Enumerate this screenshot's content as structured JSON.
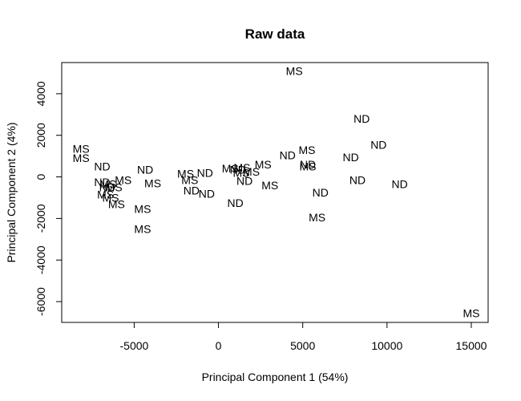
{
  "chart_data": {
    "type": "scatter",
    "title": "Raw data",
    "xlabel": "Principal Component 1 (54%)",
    "ylabel": "Principal Component 2 (4%)",
    "xlim": [
      -9300,
      16000
    ],
    "ylim": [
      -7000,
      5500
    ],
    "xticks": [
      -5000,
      0,
      5000,
      10000,
      15000
    ],
    "yticks": [
      -6000,
      -4000,
      -2000,
      0,
      2000,
      4000
    ],
    "xtick_labels": [
      "-5000",
      "0",
      "5000",
      "10000",
      "15000"
    ],
    "ytick_labels": [
      "-6000",
      "-4000",
      "-2000",
      "0",
      "2000",
      "4000"
    ],
    "grid": false,
    "legend": "none",
    "points": [
      {
        "x": 4500,
        "y": 5100,
        "label": "MS"
      },
      {
        "x": 8500,
        "y": 2800,
        "label": "ND"
      },
      {
        "x": 9500,
        "y": 1550,
        "label": "ND"
      },
      {
        "x": -8150,
        "y": 1350,
        "label": "MS"
      },
      {
        "x": -8150,
        "y": 900,
        "label": "MS"
      },
      {
        "x": 4100,
        "y": 1050,
        "label": "ND"
      },
      {
        "x": 5250,
        "y": 1300,
        "label": "MS"
      },
      {
        "x": 7850,
        "y": 950,
        "label": "ND"
      },
      {
        "x": 5300,
        "y": 600,
        "label": "ND"
      },
      {
        "x": 5300,
        "y": 500,
        "label": "MS"
      },
      {
        "x": -6900,
        "y": 500,
        "label": "ND"
      },
      {
        "x": -4350,
        "y": 350,
        "label": "ND"
      },
      {
        "x": 2650,
        "y": 600,
        "label": "MS"
      },
      {
        "x": -5650,
        "y": -150,
        "label": "MS"
      },
      {
        "x": -6550,
        "y": -350,
        "label": "MS"
      },
      {
        "x": -6900,
        "y": -250,
        "label": "ND"
      },
      {
        "x": -6600,
        "y": -500,
        "label": "ND"
      },
      {
        "x": -6200,
        "y": -500,
        "label": "MS"
      },
      {
        "x": -6700,
        "y": -850,
        "label": "MS"
      },
      {
        "x": -6400,
        "y": -1000,
        "label": "MS"
      },
      {
        "x": -6050,
        "y": -1300,
        "label": "MS"
      },
      {
        "x": -3900,
        "y": -300,
        "label": "MS"
      },
      {
        "x": -1950,
        "y": 150,
        "label": "MS"
      },
      {
        "x": -1700,
        "y": -150,
        "label": "MS"
      },
      {
        "x": -1600,
        "y": -650,
        "label": "ND"
      },
      {
        "x": -800,
        "y": 200,
        "label": "ND"
      },
      {
        "x": -700,
        "y": -800,
        "label": "ND"
      },
      {
        "x": 700,
        "y": 400,
        "label": "MS"
      },
      {
        "x": 1150,
        "y": 350,
        "label": "ND"
      },
      {
        "x": 1400,
        "y": 450,
        "label": "MS"
      },
      {
        "x": 1350,
        "y": 200,
        "label": "MS"
      },
      {
        "x": 1950,
        "y": 250,
        "label": "MS"
      },
      {
        "x": 1550,
        "y": -200,
        "label": "ND"
      },
      {
        "x": 1000,
        "y": -1250,
        "label": "ND"
      },
      {
        "x": 3050,
        "y": -400,
        "label": "MS"
      },
      {
        "x": -4500,
        "y": -1550,
        "label": "MS"
      },
      {
        "x": -4500,
        "y": -2500,
        "label": "MS"
      },
      {
        "x": 6050,
        "y": -750,
        "label": "ND"
      },
      {
        "x": 5850,
        "y": -1950,
        "label": "MS"
      },
      {
        "x": 8250,
        "y": -150,
        "label": "ND"
      },
      {
        "x": 10750,
        "y": -350,
        "label": "ND"
      },
      {
        "x": 15000,
        "y": -6550,
        "label": "MS"
      }
    ]
  }
}
